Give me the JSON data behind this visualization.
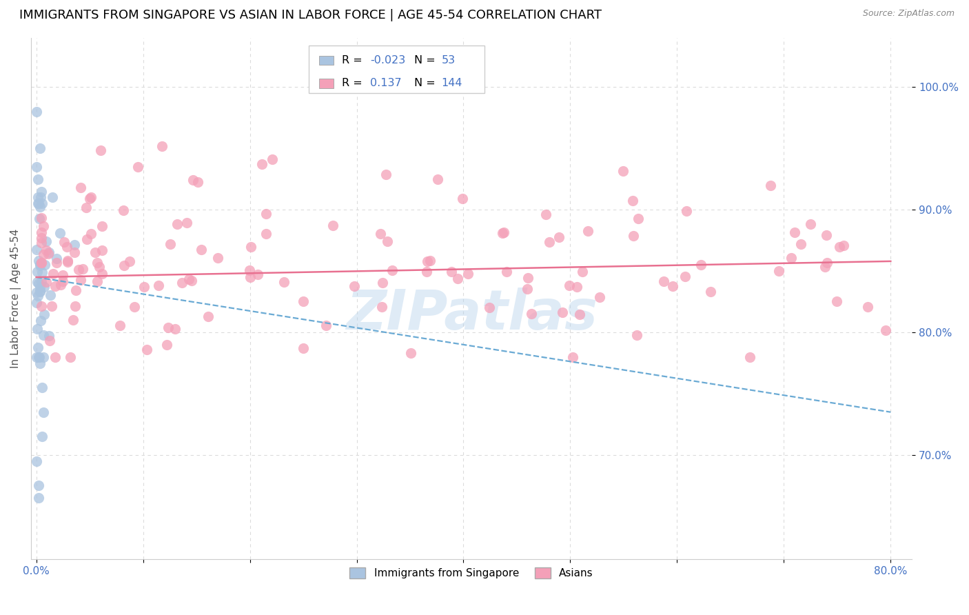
{
  "title": "IMMIGRANTS FROM SINGAPORE VS ASIAN IN LABOR FORCE | AGE 45-54 CORRELATION CHART",
  "source": "Source: ZipAtlas.com",
  "ylabel": "In Labor Force | Age 45-54",
  "xlim": [
    -0.005,
    0.82
  ],
  "ylim": [
    0.615,
    1.04
  ],
  "xtick_positions": [
    0.0,
    0.1,
    0.2,
    0.3,
    0.4,
    0.5,
    0.6,
    0.7,
    0.8
  ],
  "xticklabels": [
    "0.0%",
    "",
    "",
    "",
    "",
    "",
    "",
    "",
    "80.0%"
  ],
  "ytick_positions": [
    0.7,
    0.8,
    0.9,
    1.0
  ],
  "ytick_labels": [
    "70.0%",
    "80.0%",
    "90.0%",
    "100.0%"
  ],
  "blue_color": "#aac4e0",
  "pink_color": "#f4a0b8",
  "blue_line_color": "#6aaad4",
  "pink_line_color": "#e87090",
  "tick_color": "#4472c4",
  "grid_color": "#d8d8d8",
  "title_fontsize": 13,
  "axis_label_fontsize": 11,
  "tick_fontsize": 11,
  "legend_fontsize": 12,
  "watermark_text": "ZIPatlas",
  "blue_trend_x0": 0.0,
  "blue_trend_x1": 0.8,
  "blue_trend_y0": 0.845,
  "blue_trend_y1": 0.735,
  "pink_trend_x0": 0.0,
  "pink_trend_x1": 0.8,
  "pink_trend_y0": 0.845,
  "pink_trend_y1": 0.858
}
